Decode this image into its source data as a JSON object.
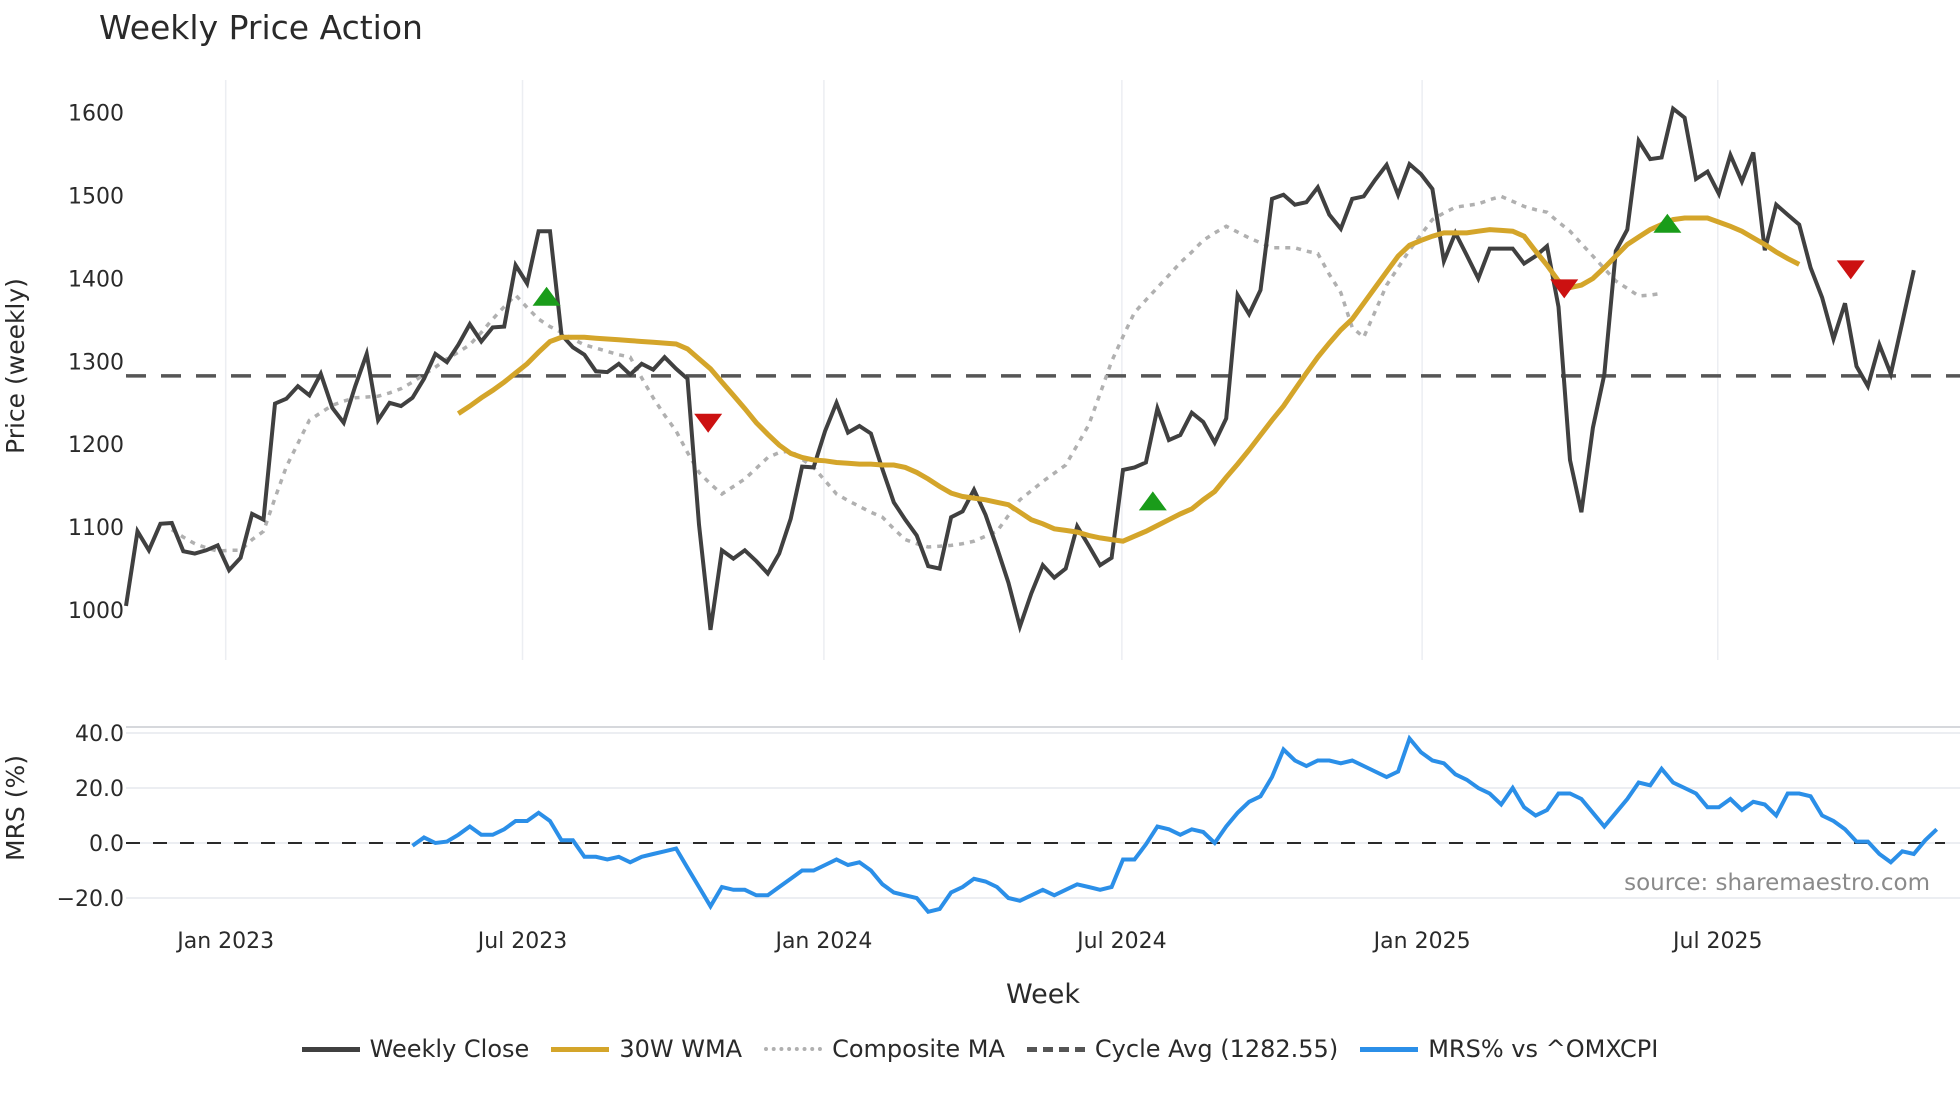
{
  "title": "Weekly Price Action",
  "legend": [
    {
      "label": "Weekly Close",
      "color": "#404040",
      "style": "solid"
    },
    {
      "label": "30W WMA",
      "color": "#d4a52a",
      "style": "solid"
    },
    {
      "label": "Composite MA",
      "color": "#b0b0b0",
      "style": "dotted"
    },
    {
      "label": "Cycle Avg (1282.55)",
      "color": "#555555",
      "style": "dashed"
    },
    {
      "label": "MRS% vs ^OMXCPI",
      "color": "#2b8fe8",
      "style": "solid"
    }
  ],
  "source": "source: sharemaestro.com",
  "chart_data": [
    {
      "type": "line",
      "title": "Weekly Price Action",
      "xlabel": "Week",
      "ylabel": "Price (weekly)",
      "ylim": [
        960,
        1640
      ],
      "yticks": [
        1000,
        1100,
        1200,
        1300,
        1400,
        1500,
        1600
      ],
      "xticks": [
        "Jan 2023",
        "Jul 2023",
        "Jan 2024",
        "Jul 2024",
        "Jan 2025",
        "Jul 2025"
      ],
      "xtick_weeks": [
        8.7,
        34.6,
        60.9,
        86.9,
        113.1,
        138.9
      ],
      "grid": "vertical",
      "cycle_avg": 1282.55,
      "series": [
        {
          "name": "Weekly Close",
          "color": "#404040",
          "values": [
            1005,
            1095,
            1072,
            1104,
            1105,
            1071,
            1068,
            1072,
            1078,
            1048,
            1063,
            1116,
            1109,
            1249,
            1255,
            1270,
            1259,
            1285,
            1244,
            1226,
            1270,
            1309,
            1229,
            1250,
            1246,
            1256,
            1279,
            1309,
            1299,
            1320,
            1345,
            1324,
            1341,
            1342,
            1416,
            1394,
            1457,
            1457,
            1332,
            1317,
            1308,
            1288,
            1287,
            1297,
            1284,
            1297,
            1290,
            1305,
            1291,
            1279,
            1103,
            976,
            1072,
            1062,
            1072,
            1059,
            1044,
            1068,
            1110,
            1173,
            1172,
            1216,
            1250,
            1214,
            1222,
            1213,
            1170,
            1130,
            1109,
            1090,
            1053,
            1050,
            1112,
            1119,
            1145,
            1115,
            1075,
            1033,
            980,
            1020,
            1054,
            1039,
            1050,
            1101,
            1078,
            1054,
            1063,
            1169,
            1172,
            1178,
            1243,
            1205,
            1211,
            1238,
            1227,
            1202,
            1231,
            1380,
            1357,
            1386,
            1496,
            1501,
            1489,
            1492,
            1510,
            1477,
            1460,
            1496,
            1499,
            1519,
            1537,
            1501,
            1538,
            1526,
            1508,
            1421,
            1455,
            1428,
            1400,
            1436,
            1436,
            1436,
            1418,
            1427,
            1439,
            1366,
            1181,
            1118,
            1220,
            1284,
            1433,
            1459,
            1566,
            1544,
            1546,
            1605,
            1594,
            1520,
            1529,
            1502,
            1549,
            1517,
            1552,
            1434,
            1489,
            1477,
            1465,
            1413,
            1377,
            1327,
            1370,
            1294,
            1270,
            1320,
            1285,
            1347,
            1410
          ]
        },
        {
          "name": "30W WMA",
          "color": "#d4a52a",
          "start_week": 29,
          "values": [
            1237,
            1246,
            1256,
            1265,
            1275,
            1286,
            1297,
            1311,
            1324,
            1329,
            1329,
            1329,
            1328,
            1327,
            1326,
            1325,
            1324,
            1323,
            1322,
            1321,
            1315,
            1303,
            1291,
            1275,
            1259,
            1243,
            1226,
            1212,
            1199,
            1189,
            1184,
            1181,
            1180,
            1178,
            1177,
            1176,
            1176,
            1175,
            1175,
            1172,
            1166,
            1158,
            1149,
            1141,
            1137,
            1135,
            1133,
            1130,
            1127,
            1118,
            1109,
            1104,
            1098,
            1096,
            1094,
            1090,
            1087,
            1085,
            1083,
            1089,
            1095,
            1102,
            1109,
            1116,
            1122,
            1133,
            1143,
            1160,
            1176,
            1193,
            1211,
            1229,
            1246,
            1266,
            1286,
            1305,
            1322,
            1338,
            1351,
            1370,
            1389,
            1408,
            1427,
            1440,
            1446,
            1451,
            1455,
            1455,
            1455,
            1457,
            1459,
            1458,
            1457,
            1451,
            1433,
            1416,
            1397,
            1389,
            1392,
            1400,
            1413,
            1427,
            1441,
            1450,
            1459,
            1465,
            1471,
            1473,
            1473,
            1473,
            1468,
            1463,
            1457,
            1449,
            1441,
            1432,
            1424,
            1417
          ]
        },
        {
          "name": "Composite MA",
          "color": "#b0b0b0",
          "start_week": 4,
          "values": [
            1097,
            1088,
            1080,
            1075,
            1071,
            1072,
            1072,
            1085,
            1095,
            1135,
            1173,
            1201,
            1229,
            1238,
            1247,
            1252,
            1256,
            1257,
            1258,
            1262,
            1267,
            1275,
            1284,
            1293,
            1303,
            1311,
            1320,
            1335,
            1351,
            1366,
            1380,
            1365,
            1351,
            1342,
            1335,
            1327,
            1320,
            1316,
            1312,
            1308,
            1305,
            1280,
            1256,
            1235,
            1216,
            1190,
            1166,
            1152,
            1140,
            1149,
            1158,
            1171,
            1184,
            1190,
            1192,
            1182,
            1172,
            1156,
            1140,
            1132,
            1125,
            1118,
            1112,
            1098,
            1085,
            1080,
            1076,
            1077,
            1078,
            1080,
            1083,
            1089,
            1095,
            1114,
            1133,
            1144,
            1155,
            1165,
            1175,
            1199,
            1223,
            1261,
            1300,
            1330,
            1359,
            1374,
            1389,
            1404,
            1419,
            1432,
            1446,
            1455,
            1463,
            1456,
            1449,
            1443,
            1437,
            1437,
            1437,
            1433,
            1430,
            1405,
            1383,
            1341,
            1329,
            1360,
            1392,
            1413,
            1434,
            1453,
            1471,
            1479,
            1486,
            1488,
            1490,
            1495,
            1499,
            1493,
            1487,
            1483,
            1480,
            1468,
            1457,
            1442,
            1427,
            1412,
            1397,
            1388,
            1379,
            1380,
            1382
          ]
        },
        {
          "name": "Cycle Avg (1282.55)",
          "color": "#555555",
          "constant": 1282.55
        }
      ],
      "markers": [
        {
          "type": "buy",
          "shape": "triangle-up",
          "color": "#1a9c1a",
          "week": 36.7,
          "value": 1378
        },
        {
          "type": "sell",
          "shape": "triangle-down",
          "color": "#cc1111",
          "week": 50.8,
          "value": 1226
        },
        {
          "type": "buy",
          "shape": "triangle-up",
          "color": "#1a9c1a",
          "week": 89.6,
          "value": 1131
        },
        {
          "type": "sell",
          "shape": "triangle-down",
          "color": "#cc1111",
          "week": 125.5,
          "value": 1388
        },
        {
          "type": "buy",
          "shape": "triangle-up",
          "color": "#1a9c1a",
          "week": 134.5,
          "value": 1466
        },
        {
          "type": "sell",
          "shape": "triangle-down",
          "color": "#cc1111",
          "week": 150.5,
          "value": 1411
        }
      ]
    },
    {
      "type": "line",
      "title": "",
      "xlabel": "Week",
      "ylabel": "MRS (%)",
      "ylim": [
        -26,
        41
      ],
      "yticks": [
        -20.0,
        0.0,
        20.0,
        40.0
      ],
      "ytick_labels": [
        "−20.0",
        "0.0",
        "20.0",
        "40.0"
      ],
      "zero_line": 0.0,
      "annotation": "source: sharemaestro.com",
      "series": [
        {
          "name": "MRS% vs ^OMXCPI",
          "color": "#2b8fe8",
          "start_week": 25,
          "values": [
            -1,
            2,
            0,
            0.5,
            3,
            6,
            3,
            3,
            5,
            8,
            8,
            11,
            8,
            1,
            1,
            -5,
            -5,
            -6,
            -5,
            -7,
            -5,
            -4,
            -3,
            -2,
            -9,
            -16,
            -23,
            -16,
            -17,
            -17,
            -19,
            -19,
            -16,
            -13,
            -10,
            -10,
            -8,
            -6,
            -8,
            -7,
            -10,
            -15,
            -18,
            -19,
            -20,
            -25,
            -24,
            -18,
            -16,
            -13,
            -14,
            -16,
            -20,
            -21,
            -19,
            -17,
            -19,
            -17,
            -15,
            -16,
            -17,
            -16,
            -6,
            -6,
            -0.5,
            6,
            5,
            3,
            5,
            4,
            0,
            6,
            11,
            15,
            17,
            24,
            34,
            30,
            28,
            30,
            30,
            29,
            30,
            28,
            26,
            24,
            26,
            38,
            33,
            30,
            29,
            25,
            23,
            20,
            18,
            14,
            20,
            13,
            10,
            12,
            18,
            18,
            16,
            11,
            6,
            11,
            16,
            22,
            21,
            27,
            22,
            20,
            18,
            13,
            13,
            16,
            12,
            15,
            14,
            10,
            18,
            18,
            17,
            10,
            8,
            5,
            0.5,
            0.5,
            -4,
            -7,
            -3,
            -4,
            1,
            5
          ]
        }
      ]
    }
  ],
  "axes": {
    "price_ylabel": "Price (weekly)",
    "mrs_ylabel": "MRS (%)",
    "xlabel": "Week"
  }
}
